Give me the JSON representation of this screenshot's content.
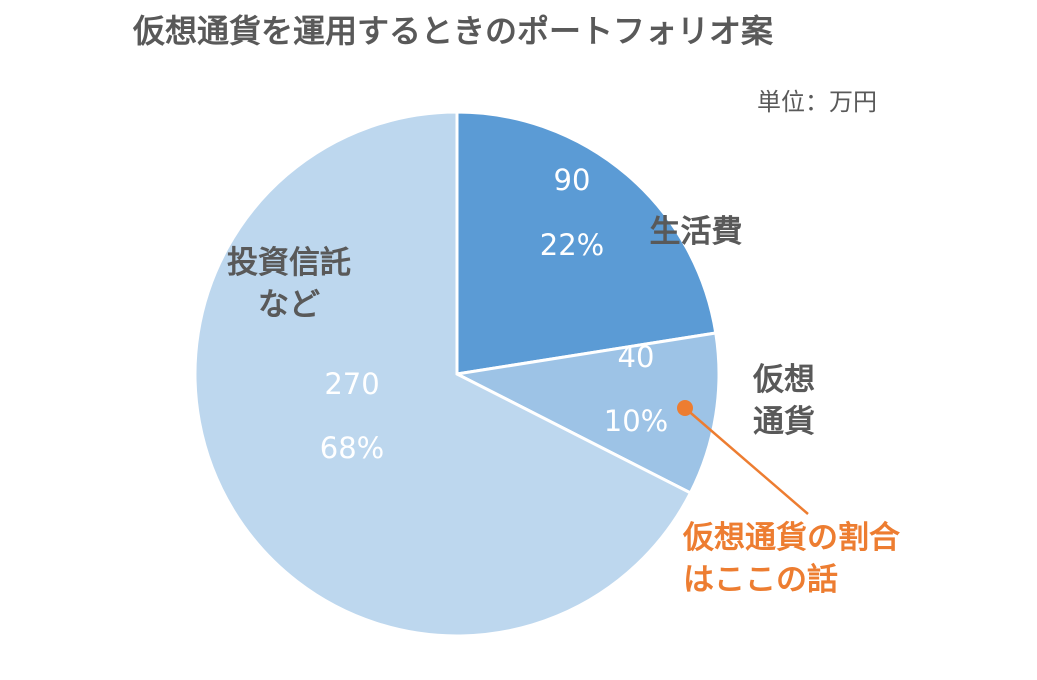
{
  "chart_data": {
    "type": "pie",
    "title": "仮想通貨を運用するときのポートフォリオ案",
    "unit_label": "単位：万円",
    "slices": [
      {
        "label": "生活費",
        "value": 90,
        "percent": "22%",
        "color": "#5b9bd5"
      },
      {
        "label": "仮想通貨",
        "label_lines": [
          "仮想",
          "通貨"
        ],
        "value": 40,
        "percent": "10%",
        "color": "#9dc3e6"
      },
      {
        "label": "投資信託など",
        "label_lines": [
          "投資信託",
          "など"
        ],
        "value": 270,
        "percent": "68%",
        "color": "#bdd7ee"
      }
    ],
    "annotation": {
      "lines": [
        "仮想通貨の割合",
        "はここの話"
      ],
      "color": "#ed7d31",
      "target": "仮想通貨"
    }
  }
}
